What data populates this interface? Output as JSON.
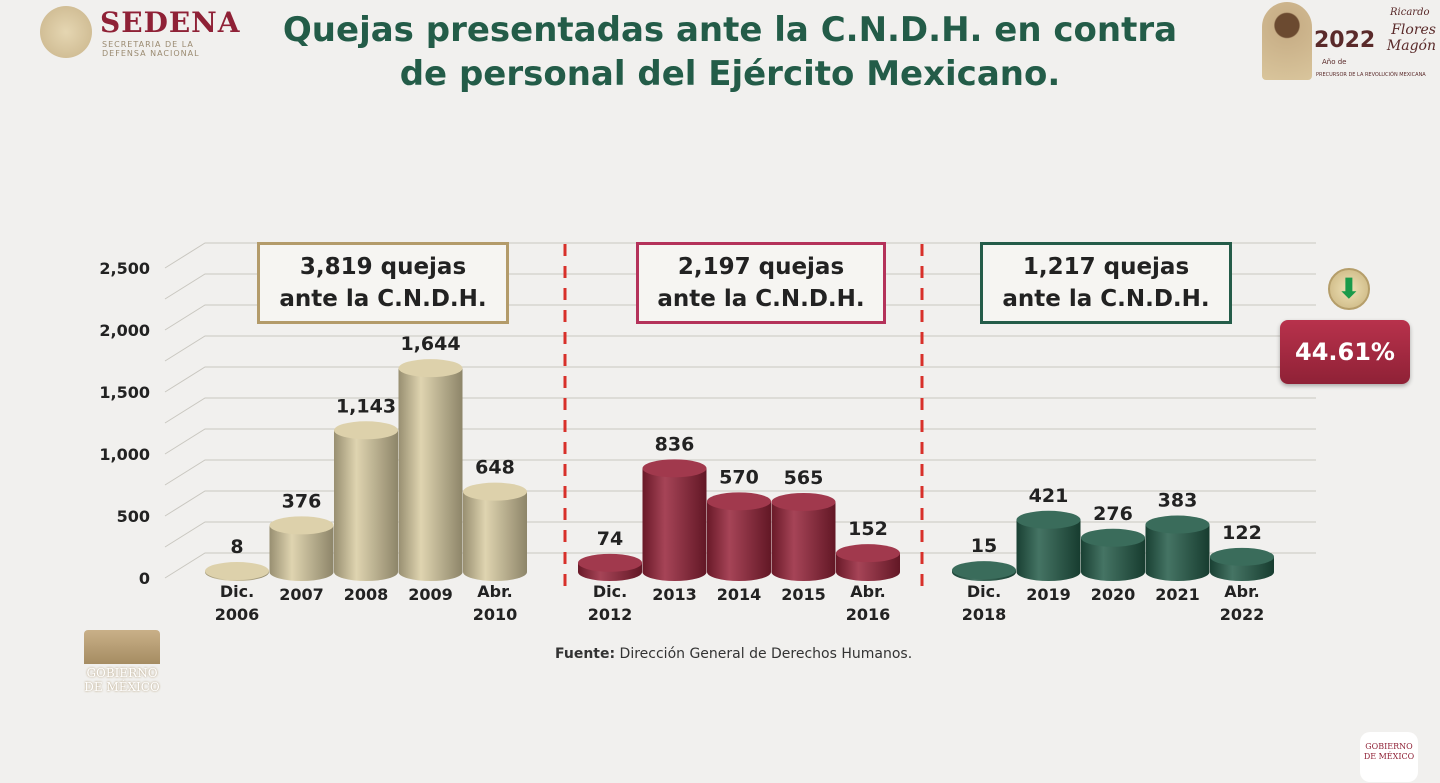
{
  "header": {
    "title_line1": "Quejas presentadas ante la C.N.D.H. en contra",
    "title_line2": "de personal del Ejército Mexicano.",
    "logo_name": "SEDENA",
    "logo_sub1": "SECRETARIA DE LA",
    "logo_sub2": "DEFENSA NACIONAL",
    "badge_year": "2022",
    "badge_ricardo": "Ricardo",
    "badge_name": "Flores Magón",
    "badge_ano": "Año de",
    "badge_sub": "PRECURSOR DE LA REVOLUCIÓN MEXICANA"
  },
  "boxes": [
    {
      "line1": "3,819 quejas",
      "line2": "ante la C.N.D.H.",
      "color": "#b39b6a"
    },
    {
      "line1": "2,197 quejas",
      "line2": "ante la C.N.D.H.",
      "color": "#b4325a"
    },
    {
      "line1": "1,217 quejas",
      "line2": "ante la C.N.D.H.",
      "color": "#245c49"
    }
  ],
  "decrease": {
    "percent": "44.61%",
    "icon": "down-arrow-icon"
  },
  "footer": {
    "source_label": "Fuente:",
    "source_text": "Dirección General de Derechos Humanos.",
    "gob_logo": "GOBIERNO DE MÉXICO"
  },
  "chart_data": {
    "type": "bar",
    "title": "Quejas presentadas ante la C.N.D.H. en contra de personal del Ejército Mexicano.",
    "ylim": [
      0,
      2500
    ],
    "yticks": [
      "0",
      "500",
      "1,000",
      "1,500",
      "2,000",
      "2,500"
    ],
    "grid": true,
    "groups": [
      {
        "color": "#d9cca2",
        "categories": [
          "Dic.|2006",
          "2007",
          "2008",
          "2009",
          "Abr.|2010"
        ],
        "values": [
          8,
          376,
          1143,
          1644,
          648
        ],
        "labels": [
          "8",
          "376",
          "1,143",
          "1,644",
          "648"
        ]
      },
      {
        "color": "#962339",
        "categories": [
          "Dic.|2012",
          "2013",
          "2014",
          "2015",
          "Abr.|2016"
        ],
        "values": [
          74,
          836,
          570,
          565,
          152
        ],
        "labels": [
          "74",
          "836",
          "570",
          "565",
          "152"
        ]
      },
      {
        "color": "#245c49",
        "categories": [
          "Dic.|2018",
          "2019",
          "2020",
          "2021",
          "Abr.|2022"
        ],
        "values": [
          15,
          421,
          276,
          383,
          122
        ],
        "labels": [
          "15",
          "421",
          "276",
          "383",
          "122"
        ]
      }
    ]
  }
}
